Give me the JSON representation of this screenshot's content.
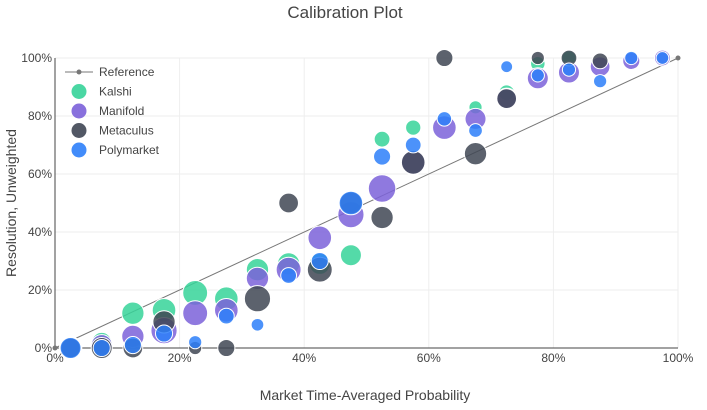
{
  "chart_data": {
    "type": "scatter",
    "title": "Calibration Plot",
    "xlabel": "Market Time-Averaged Probability",
    "ylabel": "Resolution, Unweighted",
    "xlim": [
      0,
      100
    ],
    "ylim": [
      0,
      100
    ],
    "x_ticks": [
      "0%",
      "20%",
      "40%",
      "60%",
      "80%",
      "100%"
    ],
    "y_ticks": [
      "0%",
      "20%",
      "40%",
      "60%",
      "80%",
      "100%"
    ],
    "grid": true,
    "legend_position": "top-left",
    "reference": {
      "name": "Reference",
      "color": "#777777",
      "points": [
        [
          0,
          0
        ],
        [
          100,
          100
        ]
      ]
    },
    "series": [
      {
        "name": "Kalshi",
        "color": "#36d399",
        "points": [
          {
            "x": 2.5,
            "y": 0,
            "size": 0.55
          },
          {
            "x": 7.5,
            "y": 2,
            "size": 0.45
          },
          {
            "x": 12.5,
            "y": 12,
            "size": 0.55
          },
          {
            "x": 17.5,
            "y": 13,
            "size": 0.6
          },
          {
            "x": 22.5,
            "y": 19,
            "size": 0.65
          },
          {
            "x": 27.5,
            "y": 17,
            "size": 0.6
          },
          {
            "x": 32.5,
            "y": 27,
            "size": 0.55
          },
          {
            "x": 37.5,
            "y": 29,
            "size": 0.55
          },
          {
            "x": 42.5,
            "y": 29,
            "size": 0.5
          },
          {
            "x": 47.5,
            "y": 32,
            "size": 0.5
          },
          {
            "x": 52.5,
            "y": 72,
            "size": 0.3
          },
          {
            "x": 57.5,
            "y": 76,
            "size": 0.28
          },
          {
            "x": 67.5,
            "y": 83,
            "size": 0.2
          },
          {
            "x": 72.5,
            "y": 88,
            "size": 0.3
          },
          {
            "x": 77.5,
            "y": 98,
            "size": 0.25
          },
          {
            "x": 82.5,
            "y": 100,
            "size": 0.25
          }
        ]
      },
      {
        "name": "Manifold",
        "color": "#7b61d9",
        "points": [
          {
            "x": 2.5,
            "y": 0,
            "size": 0.55
          },
          {
            "x": 7.5,
            "y": 1,
            "size": 0.5
          },
          {
            "x": 12.5,
            "y": 4,
            "size": 0.55
          },
          {
            "x": 17.5,
            "y": 6,
            "size": 0.7
          },
          {
            "x": 22.5,
            "y": 12,
            "size": 0.65
          },
          {
            "x": 27.5,
            "y": 13,
            "size": 0.6
          },
          {
            "x": 32.5,
            "y": 24,
            "size": 0.55
          },
          {
            "x": 37.5,
            "y": 27,
            "size": 0.65
          },
          {
            "x": 42.5,
            "y": 38,
            "size": 0.6
          },
          {
            "x": 47.5,
            "y": 46,
            "size": 0.7
          },
          {
            "x": 52.5,
            "y": 55,
            "size": 0.75
          },
          {
            "x": 57.5,
            "y": 64,
            "size": 0.65
          },
          {
            "x": 62.5,
            "y": 76,
            "size": 0.6
          },
          {
            "x": 67.5,
            "y": 79,
            "size": 0.5
          },
          {
            "x": 72.5,
            "y": 86,
            "size": 0.5
          },
          {
            "x": 77.5,
            "y": 93,
            "size": 0.5
          },
          {
            "x": 82.5,
            "y": 95,
            "size": 0.5
          },
          {
            "x": 87.5,
            "y": 97,
            "size": 0.45
          },
          {
            "x": 92.5,
            "y": 99,
            "size": 0.35
          },
          {
            "x": 97.5,
            "y": 100,
            "size": 0.3
          }
        ]
      },
      {
        "name": "Metaculus",
        "color": "#3f4654",
        "points": [
          {
            "x": 2.5,
            "y": 0,
            "size": 0.45
          },
          {
            "x": 7.5,
            "y": 0,
            "size": 0.5
          },
          {
            "x": 12.5,
            "y": 0,
            "size": 0.45
          },
          {
            "x": 17.5,
            "y": 9,
            "size": 0.55
          },
          {
            "x": 22.5,
            "y": 0,
            "size": 0.2
          },
          {
            "x": 27.5,
            "y": 0,
            "size": 0.35
          },
          {
            "x": 32.5,
            "y": 17,
            "size": 0.7
          },
          {
            "x": 37.5,
            "y": 50,
            "size": 0.45
          },
          {
            "x": 42.5,
            "y": 27,
            "size": 0.65
          },
          {
            "x": 47.5,
            "y": 50,
            "size": 0.55
          },
          {
            "x": 52.5,
            "y": 45,
            "size": 0.55
          },
          {
            "x": 57.5,
            "y": 64,
            "size": 0.6
          },
          {
            "x": 62.5,
            "y": 100,
            "size": 0.35
          },
          {
            "x": 67.5,
            "y": 67,
            "size": 0.55
          },
          {
            "x": 72.5,
            "y": 86,
            "size": 0.45
          },
          {
            "x": 77.5,
            "y": 100,
            "size": 0.2
          },
          {
            "x": 82.5,
            "y": 100,
            "size": 0.3
          },
          {
            "x": 87.5,
            "y": 99,
            "size": 0.3
          }
        ]
      },
      {
        "name": "Polymarket",
        "color": "#2d7ff9",
        "points": [
          {
            "x": 2.5,
            "y": 0,
            "size": 0.5
          },
          {
            "x": 7.5,
            "y": 0,
            "size": 0.35
          },
          {
            "x": 12.5,
            "y": 1,
            "size": 0.35
          },
          {
            "x": 17.5,
            "y": 5,
            "size": 0.35
          },
          {
            "x": 22.5,
            "y": 2,
            "size": 0.2
          },
          {
            "x": 27.5,
            "y": 11,
            "size": 0.3
          },
          {
            "x": 32.5,
            "y": 8,
            "size": 0.18
          },
          {
            "x": 37.5,
            "y": 25,
            "size": 0.3
          },
          {
            "x": 42.5,
            "y": 30,
            "size": 0.35
          },
          {
            "x": 47.5,
            "y": 50,
            "size": 0.6
          },
          {
            "x": 52.5,
            "y": 66,
            "size": 0.35
          },
          {
            "x": 57.5,
            "y": 70,
            "size": 0.3
          },
          {
            "x": 62.5,
            "y": 79,
            "size": 0.25
          },
          {
            "x": 67.5,
            "y": 75,
            "size": 0.22
          },
          {
            "x": 72.5,
            "y": 97,
            "size": 0.15
          },
          {
            "x": 77.5,
            "y": 94,
            "size": 0.2
          },
          {
            "x": 82.5,
            "y": 96,
            "size": 0.2
          },
          {
            "x": 87.5,
            "y": 92,
            "size": 0.2
          },
          {
            "x": 92.5,
            "y": 100,
            "size": 0.2
          },
          {
            "x": 97.5,
            "y": 100,
            "size": 0.18
          }
        ]
      }
    ]
  }
}
